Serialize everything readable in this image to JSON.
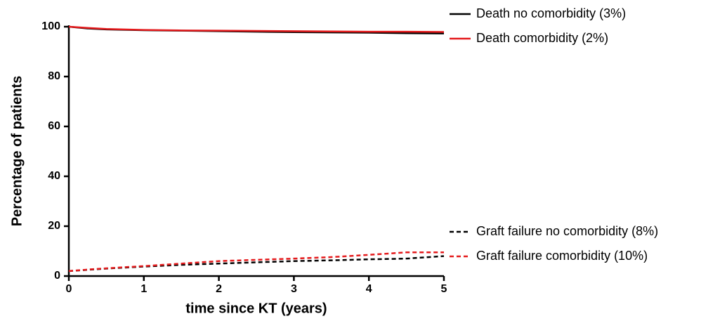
{
  "chart_data": {
    "type": "line",
    "xlabel": "time since KT (years)",
    "ylabel": "Percentage of patients",
    "x": [
      0,
      0.25,
      0.5,
      1,
      1.5,
      2,
      2.5,
      3,
      3.5,
      4,
      4.5,
      5
    ],
    "series": [
      {
        "name": "Death no comorbidity (3%)",
        "color": "#000000",
        "dashed": false,
        "values": [
          100,
          99.3,
          98.9,
          98.6,
          98.4,
          98.2,
          98.0,
          97.8,
          97.7,
          97.6,
          97.4,
          97.3
        ]
      },
      {
        "name": "Death comorbidity (2%)",
        "color": "#e41a1c",
        "dashed": false,
        "values": [
          100,
          99.5,
          99.1,
          98.7,
          98.5,
          98.4,
          98.3,
          98.2,
          98.1,
          98.0,
          98.0,
          97.9
        ]
      },
      {
        "name": "Graft failure no comorbidity (8%)",
        "color": "#000000",
        "dashed": true,
        "values": [
          2,
          2.5,
          3,
          3.8,
          4.5,
          5,
          5.5,
          6,
          6.3,
          6.7,
          7,
          8
        ]
      },
      {
        "name": "Graft failure comorbidity (10%)",
        "color": "#e41a1c",
        "dashed": true,
        "values": [
          2,
          2.6,
          3.1,
          4,
          5,
          6,
          6.5,
          7,
          7.6,
          8.5,
          9.5,
          9.5
        ]
      }
    ],
    "xlim": [
      0,
      5
    ],
    "xticks": [
      0,
      1,
      2,
      3,
      4,
      5
    ],
    "ylim": [
      0,
      100
    ],
    "yticks": [
      0,
      20,
      40,
      60,
      80,
      100
    ],
    "grid": false
  }
}
